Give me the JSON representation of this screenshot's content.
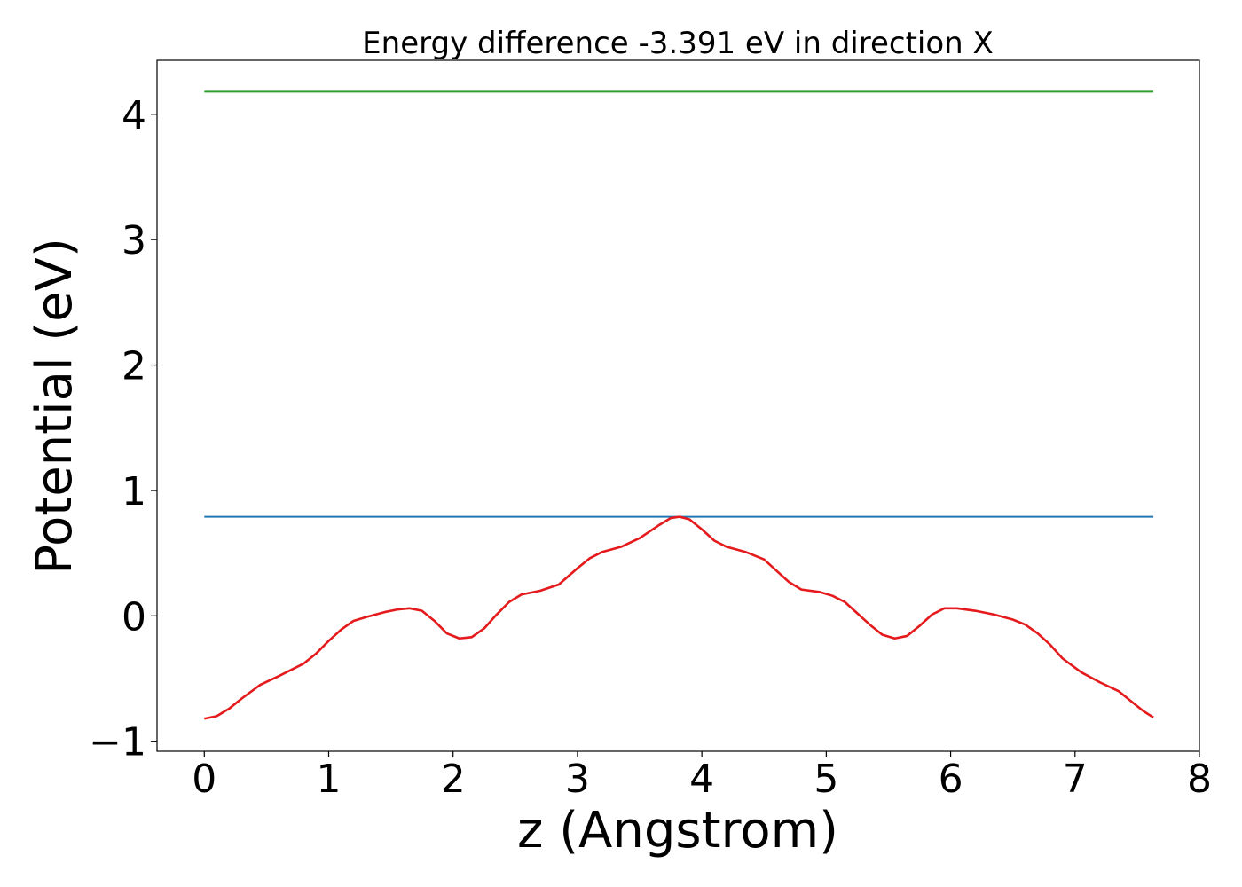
{
  "chart_data": {
    "type": "line",
    "title": "Energy difference -3.391 eV in direction X",
    "xlabel": "z (Angstrom)",
    "ylabel": "Potential (eV)",
    "xlim": [
      -0.38,
      8.0
    ],
    "ylim": [
      -1.08,
      4.43
    ],
    "xticks": [
      0,
      1,
      2,
      3,
      4,
      5,
      6,
      7,
      8
    ],
    "xtick_labels": [
      "0",
      "1",
      "2",
      "3",
      "4",
      "5",
      "6",
      "7",
      "8"
    ],
    "yticks": [
      -1,
      0,
      1,
      2,
      3,
      4
    ],
    "ytick_labels": [
      "−1",
      "0",
      "1",
      "2",
      "3",
      "4"
    ],
    "grid": false,
    "legend": "none",
    "series": [
      {
        "color": "#2ca02c",
        "x": [
          0,
          7.63
        ],
        "y": [
          4.18,
          4.18
        ]
      },
      {
        "color": "#1f77b4",
        "x": [
          0,
          7.63
        ],
        "y": [
          0.79,
          0.79
        ]
      },
      {
        "color": "#e41a1c",
        "x": [
          0,
          0.1,
          0.2,
          0.3,
          0.45,
          0.6,
          0.8,
          0.9,
          1.0,
          1.1,
          1.2,
          1.3,
          1.45,
          1.55,
          1.65,
          1.75,
          1.85,
          1.95,
          2.05,
          2.15,
          2.25,
          2.35,
          2.45,
          2.55,
          2.7,
          2.85,
          3.0,
          3.1,
          3.2,
          3.35,
          3.5,
          3.65,
          3.75,
          3.82,
          3.9,
          4.0,
          4.1,
          4.2,
          4.35,
          4.5,
          4.6,
          4.7,
          4.8,
          4.95,
          5.05,
          5.15,
          5.25,
          5.35,
          5.45,
          5.55,
          5.65,
          5.75,
          5.85,
          5.95,
          6.05,
          6.2,
          6.35,
          6.5,
          6.6,
          6.7,
          6.8,
          6.9,
          7.05,
          7.2,
          7.35,
          7.45,
          7.55,
          7.63
        ],
        "y": [
          -0.82,
          -0.8,
          -0.74,
          -0.66,
          -0.55,
          -0.48,
          -0.38,
          -0.3,
          -0.2,
          -0.11,
          -0.04,
          -0.01,
          0.03,
          0.05,
          0.06,
          0.04,
          -0.04,
          -0.14,
          -0.18,
          -0.17,
          -0.1,
          0.01,
          0.11,
          0.17,
          0.2,
          0.25,
          0.38,
          0.46,
          0.51,
          0.55,
          0.62,
          0.72,
          0.78,
          0.79,
          0.77,
          0.69,
          0.6,
          0.55,
          0.51,
          0.45,
          0.36,
          0.27,
          0.21,
          0.19,
          0.16,
          0.11,
          0.02,
          -0.07,
          -0.15,
          -0.18,
          -0.16,
          -0.08,
          0.01,
          0.06,
          0.06,
          0.04,
          0.01,
          -0.03,
          -0.07,
          -0.14,
          -0.23,
          -0.34,
          -0.45,
          -0.53,
          -0.6,
          -0.68,
          -0.76,
          -0.81
        ]
      }
    ]
  }
}
